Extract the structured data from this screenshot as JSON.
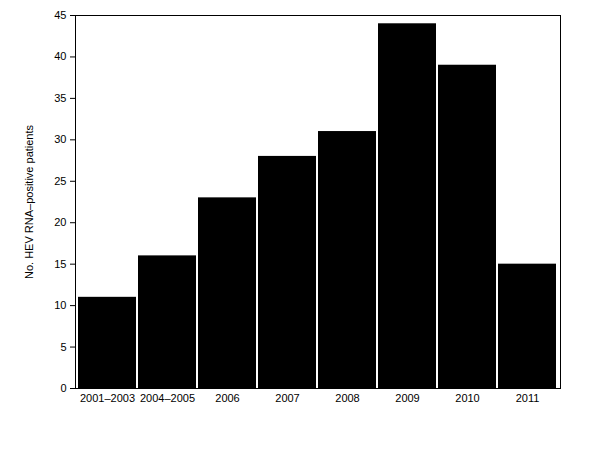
{
  "chart_data": {
    "type": "bar",
    "y_label": "No. HEV RNA–positive patients",
    "categories": [
      "2001–2003",
      "2004–2005",
      "2006",
      "2007",
      "2008",
      "2009",
      "2010",
      "2011"
    ],
    "values": [
      11,
      16,
      23,
      28,
      31,
      44,
      39,
      15
    ],
    "color": "#000000",
    "ylim": [
      0,
      45
    ],
    "yticks": [
      0,
      5,
      10,
      15,
      20,
      25,
      30,
      35,
      40,
      45
    ],
    "grid": false
  }
}
